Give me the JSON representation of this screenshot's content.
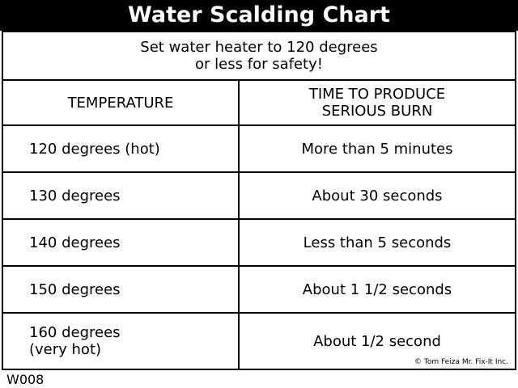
{
  "header": {
    "title": "Water Scalding Chart"
  },
  "subtitle": [
    "Set water heater to 120 degrees",
    "or less for safety!"
  ],
  "table": {
    "columns": [
      [
        "TEMPERATURE"
      ],
      [
        "TIME TO PRODUCE",
        "SERIOUS BURN"
      ]
    ],
    "rows": [
      [
        [
          "120 degrees (hot)"
        ],
        [
          "More than 5 minutes"
        ]
      ],
      [
        [
          "130 degrees"
        ],
        [
          "About 30 seconds"
        ]
      ],
      [
        [
          "140 degrees"
        ],
        [
          "Less than 5 seconds"
        ]
      ],
      [
        [
          "150 degrees"
        ],
        [
          "About 1 1/2 seconds"
        ]
      ],
      [
        [
          "160 degrees",
          "(very hot)"
        ],
        [
          "About 1/2 second"
        ]
      ]
    ]
  },
  "copyright": "© Tom Feiza Mr. Fix-It Inc.",
  "code": "W008"
}
